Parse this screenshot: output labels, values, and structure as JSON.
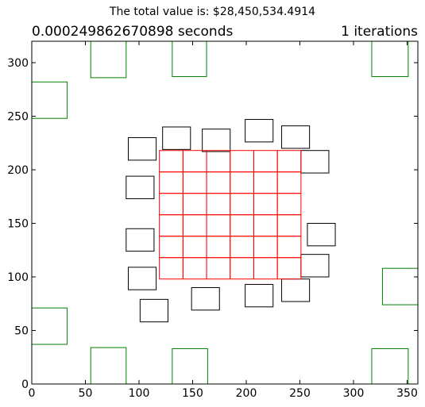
{
  "suptitle": "The total value is: $28,450,534.4914",
  "title_left": "0.000249862670898 seconds",
  "title_right": "1 iterations",
  "chart_data": {
    "type": "scatter",
    "title": "The total value is: $28,450,534.4914",
    "xlabel": "",
    "ylabel": "",
    "xlim": [
      0,
      360
    ],
    "ylim": [
      0,
      320
    ],
    "xticks": [
      0,
      50,
      100,
      150,
      200,
      250,
      300,
      350
    ],
    "yticks": [
      0,
      50,
      100,
      150,
      200,
      250,
      300
    ],
    "grid": false,
    "legend": "none",
    "colors": {
      "green": "#008000",
      "black": "#000000",
      "red": "#ff0000"
    },
    "series": [
      {
        "color": "green",
        "rects": [
          [
            0,
            248,
            33,
            282
          ],
          [
            55,
            286,
            88,
            320
          ],
          [
            131,
            287,
            163,
            320
          ],
          [
            317,
            287,
            351,
            320
          ],
          [
            0,
            37,
            33,
            71
          ],
          [
            55,
            0,
            88,
            34
          ],
          [
            131,
            0,
            164,
            33
          ],
          [
            317,
            0,
            351,
            33
          ],
          [
            327,
            74,
            360,
            108
          ]
        ]
      },
      {
        "color": "black",
        "rects": [
          [
            90,
            209,
            116,
            230
          ],
          [
            122,
            219,
            148,
            240
          ],
          [
            159,
            217,
            185,
            238
          ],
          [
            199,
            226,
            225,
            247
          ],
          [
            233,
            220,
            259,
            241
          ],
          [
            88,
            173,
            114,
            194
          ],
          [
            251,
            197,
            277,
            218
          ],
          [
            88,
            124,
            114,
            145
          ],
          [
            257,
            129,
            283,
            150
          ],
          [
            90,
            88,
            116,
            109
          ],
          [
            251,
            100,
            277,
            121
          ],
          [
            101,
            58,
            127,
            79
          ],
          [
            149,
            69,
            175,
            90
          ],
          [
            199,
            72,
            225,
            93
          ],
          [
            233,
            77,
            259,
            98
          ]
        ]
      },
      {
        "color": "red",
        "grid_x0": 119,
        "cell_w": 22,
        "cols": 6,
        "grid_y0": 98,
        "cell_h": 20,
        "rows": 6
      }
    ]
  }
}
